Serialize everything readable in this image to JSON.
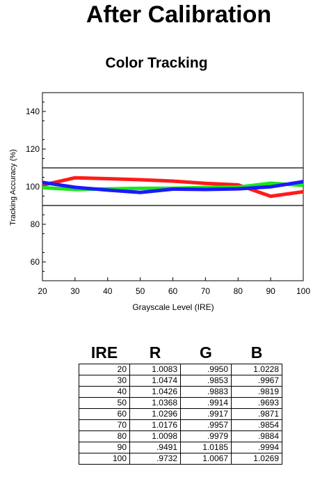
{
  "page": {
    "title": "After Calibration"
  },
  "chart_data": {
    "type": "line",
    "title": "Color Tracking",
    "xlabel": "Grayscale Level (IRE)",
    "ylabel": "Tracking Accuracy (%)",
    "xlim": [
      20,
      100
    ],
    "ylim": [
      50,
      150
    ],
    "x_ticks": [
      20,
      30,
      40,
      50,
      60,
      70,
      80,
      90,
      100
    ],
    "y_ticks": [
      60,
      80,
      100,
      120,
      140
    ],
    "reference_lines": [
      90,
      110
    ],
    "grid": false,
    "x": [
      20,
      30,
      40,
      50,
      60,
      70,
      80,
      90,
      100
    ],
    "series": [
      {
        "color": "#ff1a1a",
        "values": [
          100.83,
          104.74,
          104.26,
          103.68,
          102.96,
          101.76,
          100.98,
          94.91,
          97.32
        ]
      },
      {
        "color": "#18e818",
        "values": [
          99.5,
          98.53,
          98.83,
          99.14,
          99.17,
          99.57,
          99.79,
          101.85,
          100.67
        ]
      },
      {
        "color": "#1a1aff",
        "values": [
          102.28,
          99.67,
          98.19,
          96.93,
          98.71,
          98.54,
          98.84,
          99.94,
          102.69
        ]
      }
    ]
  },
  "table": {
    "headers": [
      "IRE",
      "R",
      "G",
      "B"
    ],
    "rows": [
      [
        "20",
        "1.0083",
        ".9950",
        "1.0228"
      ],
      [
        "30",
        "1.0474",
        ".9853",
        ".9967"
      ],
      [
        "40",
        "1.0426",
        ".9883",
        ".9819"
      ],
      [
        "50",
        "1.0368",
        ".9914",
        ".9693"
      ],
      [
        "60",
        "1.0296",
        ".9917",
        ".9871"
      ],
      [
        "70",
        "1.0176",
        ".9957",
        ".9854"
      ],
      [
        "80",
        "1.0098",
        ".9979",
        ".9884"
      ],
      [
        "90",
        ".9491",
        "1.0185",
        ".9994"
      ],
      [
        "100",
        ".9732",
        "1.0067",
        "1.0269"
      ]
    ]
  }
}
